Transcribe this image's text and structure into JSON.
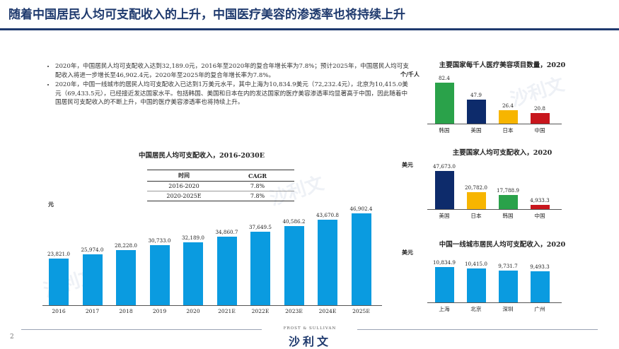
{
  "slide_title": "随着中国居民人均可支配收入的上升，中国医疗美容的渗透率也将持续上升",
  "bullets": [
    "2020年，中国居民人均可支配收入达到32,189.0元，2016年至2020年的复合年增长率为7.8%；预计2025年，中国居民人均可支配收入将进一步增长至46,902.4元，2020年至2025年的复合年增长率为7.8%。",
    "2020年，中国一线城市的居民人均可支配收入已达到1万美元水平，其中上海为10,834.9美元（72,232.4元），北京为10,415.0美元（69,433.5元），已经接近发达国家水平。包括韩国、美国和日本在内的发达国家的医疗美容渗透率均显著高于中国，因此随着中国居民可支配收入的不断上升，中国的医疗美容渗透率也将持续上升。"
  ],
  "cagr_table": {
    "header": [
      "时间",
      "CAGR"
    ],
    "rows": [
      [
        "2016-2020",
        "7.8%"
      ],
      [
        "2020-2025E",
        "7.8%"
      ]
    ]
  },
  "colors": {
    "blue": "#0a9be0",
    "navy": "#0d2b6b",
    "yellow": "#f7b500",
    "green": "#2aa24a",
    "red": "#c8161d",
    "title_navy": "#1f3a6e"
  },
  "chart_data": [
    {
      "type": "bar",
      "title": "中国居民人均可支配收入，2016-2030E",
      "ylabel": "元",
      "categories": [
        "2016",
        "2017",
        "2018",
        "2019",
        "2020",
        "2021E",
        "2022E",
        "2023E",
        "2024E",
        "2025E"
      ],
      "values": [
        23821.0,
        25974.0,
        28228.0,
        30733.0,
        32189.0,
        34860.7,
        37649.5,
        40586.2,
        43670.8,
        46902.4
      ],
      "labels": [
        "23,821.0",
        "25,974.0",
        "28,228.0",
        "30,733.0",
        "32,189.0",
        "34,860.7",
        "37,649.5",
        "40,586.2",
        "43,670.8",
        "46,902.4"
      ],
      "color": "#0a9be0"
    },
    {
      "type": "bar",
      "title": "主要国家每千人医疗美容项目数量，2020",
      "ylabel": "个/千人",
      "categories": [
        "韩国",
        "美国",
        "日本",
        "中国"
      ],
      "values": [
        82.4,
        47.9,
        26.4,
        20.8
      ],
      "labels": [
        "82.4",
        "47.9",
        "26.4",
        "20.8"
      ],
      "colors": [
        "#2aa24a",
        "#0d2b6b",
        "#f7b500",
        "#c8161d"
      ]
    },
    {
      "type": "bar",
      "title": "主要国家人均可支配收入，2020",
      "ylabel": "美元",
      "categories": [
        "美国",
        "日本",
        "韩国",
        "中国"
      ],
      "values": [
        47673.0,
        20782.0,
        17788.9,
        4933.3
      ],
      "labels": [
        "47,673.0",
        "20,782.0",
        "17,788.9",
        "4,933.3"
      ],
      "colors": [
        "#0d2b6b",
        "#f7b500",
        "#2aa24a",
        "#c8161d"
      ]
    },
    {
      "type": "bar",
      "title": "中国一线城市居民人均可支配收入，2020",
      "ylabel": "美元",
      "categories": [
        "上海",
        "北京",
        "深圳",
        "广州"
      ],
      "values": [
        10834.9,
        10415.0,
        9731.7,
        9493.3
      ],
      "labels": [
        "10,834.9",
        "10,415.0",
        "9,731.7",
        "9,493.3"
      ],
      "color": "#0a9be0"
    }
  ],
  "footer": {
    "page": "2",
    "brand_en": "FROST & SULLIVAN",
    "brand": "沙利文"
  }
}
